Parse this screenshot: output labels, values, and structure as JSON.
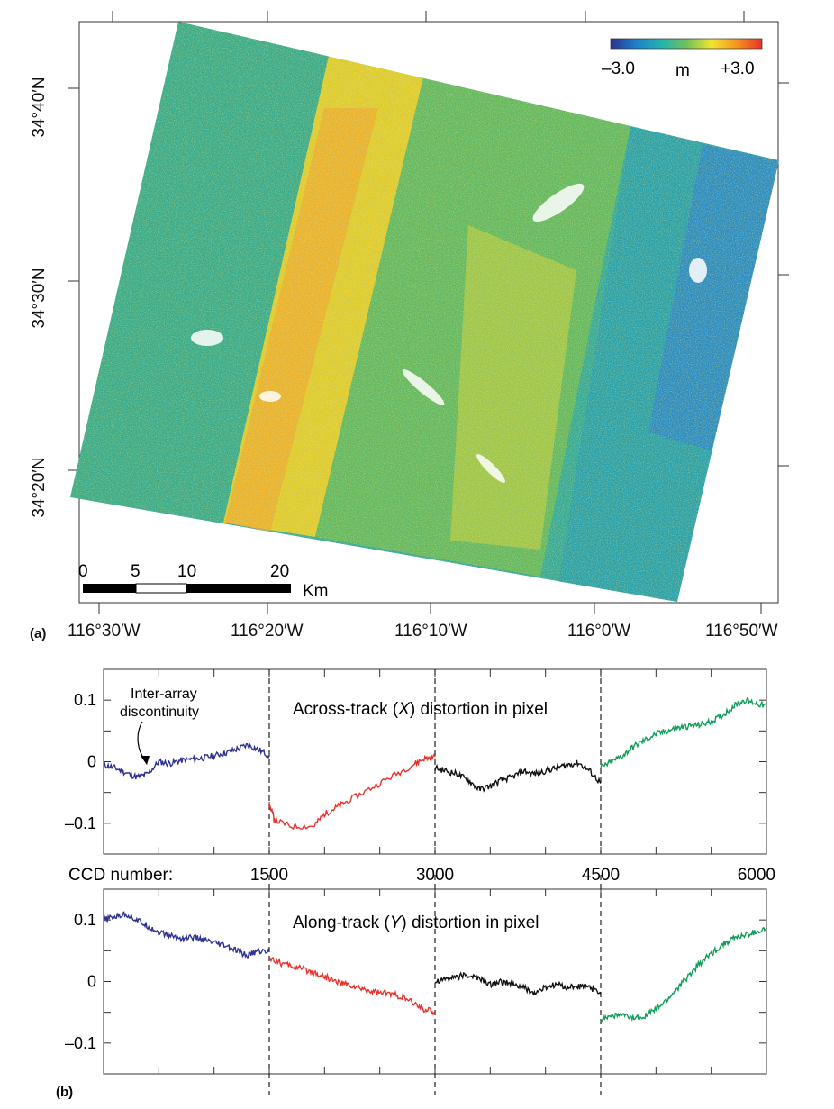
{
  "panel_a": {
    "label": "(a)",
    "lat_labels": [
      "34°40′N",
      "34°30′N",
      "34°20′N"
    ],
    "lon_labels": [
      "116°30′W",
      "116°20′W",
      "116°10′W",
      "116°0′W",
      "116°50′W"
    ],
    "colorbar": {
      "min_label": "–3.0",
      "unit": "m",
      "max_label": "+3.0",
      "colors": [
        "#2a2f8f",
        "#1f7fc8",
        "#22b3b0",
        "#6fc05a",
        "#f3e430",
        "#f7941d",
        "#e8312a"
      ]
    },
    "scalebar": {
      "ticks": [
        "0",
        "5",
        "10",
        "20"
      ],
      "unit": "Km"
    },
    "map_colors": {
      "teal": "#2aa79a",
      "green": "#4fb270",
      "yellow": "#e6d32a",
      "orange": "#f0a02a",
      "blue": "#2f8fc8"
    }
  },
  "panel_b": {
    "label": "(b)",
    "ccd_label": "CCD number:",
    "annotation": {
      "line1": "Inter-array",
      "line2": "discontinuity"
    }
  },
  "chart_data": [
    {
      "type": "line",
      "title": "Across-track (X) distortion in pixel",
      "title_parts": [
        "Across-track (",
        "X",
        ") distortion in pixel"
      ],
      "xlim": [
        0,
        6000
      ],
      "ylim": [
        -0.15,
        0.15
      ],
      "xticks": [
        1500,
        3000,
        4500,
        6000
      ],
      "xtick_labels": [
        "1500",
        "3000",
        "4500",
        "6000"
      ],
      "yticks": [
        -0.1,
        0,
        0.1
      ],
      "ytick_labels": [
        "–0.1",
        "0",
        "0.1"
      ],
      "dividers": [
        1500,
        3000,
        4500
      ],
      "series": [
        {
          "color": "#2e3192",
          "x": [
            0,
            100,
            200,
            300,
            400,
            500,
            600,
            700,
            800,
            900,
            1000,
            1100,
            1200,
            1300,
            1400,
            1500
          ],
          "y": [
            -0.005,
            -0.01,
            -0.018,
            -0.025,
            -0.02,
            0.0,
            -0.003,
            0.002,
            0.004,
            0.006,
            0.01,
            0.014,
            0.02,
            0.027,
            0.02,
            0.01
          ]
        },
        {
          "color": "#e8312a",
          "x": [
            1500,
            1550,
            1700,
            1900,
            2000,
            2100,
            2200,
            2400,
            2600,
            2800,
            2900,
            3000
          ],
          "y": [
            -0.07,
            -0.095,
            -0.105,
            -0.105,
            -0.085,
            -0.075,
            -0.065,
            -0.045,
            -0.025,
            -0.005,
            0.005,
            0.008
          ]
        },
        {
          "color": "#111111",
          "x": [
            3000,
            3100,
            3200,
            3300,
            3400,
            3500,
            3600,
            3700,
            3800,
            3900,
            4000,
            4100,
            4200,
            4300,
            4400,
            4500
          ],
          "y": [
            -0.01,
            -0.015,
            -0.02,
            -0.03,
            -0.045,
            -0.04,
            -0.03,
            -0.025,
            -0.015,
            -0.02,
            -0.015,
            -0.01,
            -0.005,
            -0.002,
            -0.015,
            -0.035
          ]
        },
        {
          "color": "#0f9d58",
          "x": [
            4500,
            4600,
            4700,
            4800,
            4900,
            5000,
            5100,
            5200,
            5300,
            5400,
            5500,
            5600,
            5700,
            5800,
            5900,
            6000
          ],
          "y": [
            -0.01,
            0.0,
            0.01,
            0.025,
            0.035,
            0.045,
            0.05,
            0.055,
            0.058,
            0.06,
            0.065,
            0.075,
            0.09,
            0.1,
            0.095,
            0.09
          ]
        }
      ]
    },
    {
      "type": "line",
      "title": "Along-track (Y) distortion in pixel",
      "title_parts": [
        "Along-track (",
        "Y",
        ") distortion in pixel"
      ],
      "xlim": [
        0,
        6000
      ],
      "ylim": [
        -0.15,
        0.15
      ],
      "yticks": [
        -0.1,
        0,
        0.1
      ],
      "ytick_labels": [
        "–0.1",
        "0",
        "0.1"
      ],
      "dividers": [
        1500,
        3000,
        4500
      ],
      "series": [
        {
          "color": "#2e3192",
          "x": [
            0,
            100,
            200,
            300,
            400,
            500,
            600,
            700,
            800,
            900,
            1000,
            1100,
            1200,
            1300,
            1400,
            1500
          ],
          "y": [
            0.1,
            0.105,
            0.11,
            0.1,
            0.09,
            0.08,
            0.075,
            0.07,
            0.072,
            0.068,
            0.062,
            0.058,
            0.05,
            0.042,
            0.05,
            0.048
          ]
        },
        {
          "color": "#e8312a",
          "x": [
            1500,
            1600,
            1700,
            1800,
            1900,
            2000,
            2100,
            2200,
            2300,
            2400,
            2500,
            2600,
            2700,
            2800,
            2900,
            3000
          ],
          "y": [
            0.04,
            0.03,
            0.025,
            0.02,
            0.015,
            0.008,
            0.0,
            -0.005,
            -0.01,
            -0.015,
            -0.018,
            -0.02,
            -0.025,
            -0.035,
            -0.045,
            -0.05
          ]
        },
        {
          "color": "#111111",
          "x": [
            3000,
            3100,
            3200,
            3300,
            3400,
            3500,
            3600,
            3700,
            3800,
            3900,
            4000,
            4100,
            4200,
            4300,
            4400,
            4500
          ],
          "y": [
            0.0,
            0.005,
            0.008,
            0.01,
            0.005,
            -0.005,
            0.0,
            -0.005,
            -0.01,
            -0.02,
            -0.01,
            -0.005,
            -0.01,
            -0.008,
            -0.01,
            -0.02
          ]
        },
        {
          "color": "#0f9d58",
          "x": [
            4500,
            4600,
            4700,
            4800,
            4900,
            5000,
            5100,
            5200,
            5300,
            5400,
            5500,
            5600,
            5700,
            5800,
            5900,
            6000
          ],
          "y": [
            -0.06,
            -0.055,
            -0.055,
            -0.06,
            -0.055,
            -0.045,
            -0.03,
            -0.01,
            0.01,
            0.03,
            0.045,
            0.06,
            0.07,
            0.075,
            0.08,
            0.085
          ]
        }
      ]
    }
  ]
}
